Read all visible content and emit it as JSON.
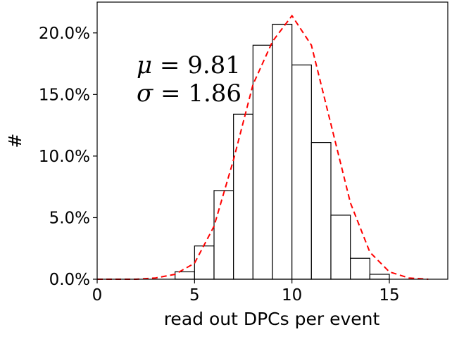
{
  "chart_data": {
    "type": "bar",
    "xlabel": "read out DPCs per event",
    "ylabel": "#",
    "xlim": [
      0,
      18
    ],
    "ylim": [
      0,
      0.225
    ],
    "bin_width": 1,
    "x_ticks": [
      0,
      5,
      10,
      15
    ],
    "x_tick_labels": [
      "0",
      "5",
      "10",
      "15"
    ],
    "y_ticks": [
      0,
      0.05,
      0.1,
      0.15,
      0.2
    ],
    "y_tick_labels": [
      "0.0%",
      "5.0%",
      "10.0%",
      "15.0%",
      "20.0%"
    ],
    "bins": [
      {
        "x": 4.5,
        "value": 0.006
      },
      {
        "x": 5.5,
        "value": 0.027
      },
      {
        "x": 6.5,
        "value": 0.072
      },
      {
        "x": 7.5,
        "value": 0.134
      },
      {
        "x": 8.5,
        "value": 0.19
      },
      {
        "x": 9.5,
        "value": 0.207
      },
      {
        "x": 10.5,
        "value": 0.174
      },
      {
        "x": 11.5,
        "value": 0.111
      },
      {
        "x": 12.5,
        "value": 0.052
      },
      {
        "x": 13.5,
        "value": 0.017
      },
      {
        "x": 14.5,
        "value": 0.004
      }
    ],
    "fit_curve": {
      "color": "#ff0000",
      "style": "dashed",
      "x": [
        0,
        1,
        2,
        3,
        4,
        5,
        6,
        7,
        8,
        9,
        10,
        11,
        12,
        13,
        14,
        15,
        16,
        17
      ],
      "y": [
        0,
        0,
        0,
        0.001,
        0.004,
        0.013,
        0.043,
        0.097,
        0.158,
        0.193,
        0.214,
        0.19,
        0.126,
        0.062,
        0.022,
        0.006,
        0.001,
        0
      ]
    },
    "annotation": {
      "mu_symbol": "μ",
      "mu_eq": " = 9.81",
      "sigma_symbol": "σ",
      "sigma_eq": " = 1.86"
    },
    "bar_edge_color": "#000000",
    "bar_fill_color": "#ffffff",
    "grid": false
  }
}
